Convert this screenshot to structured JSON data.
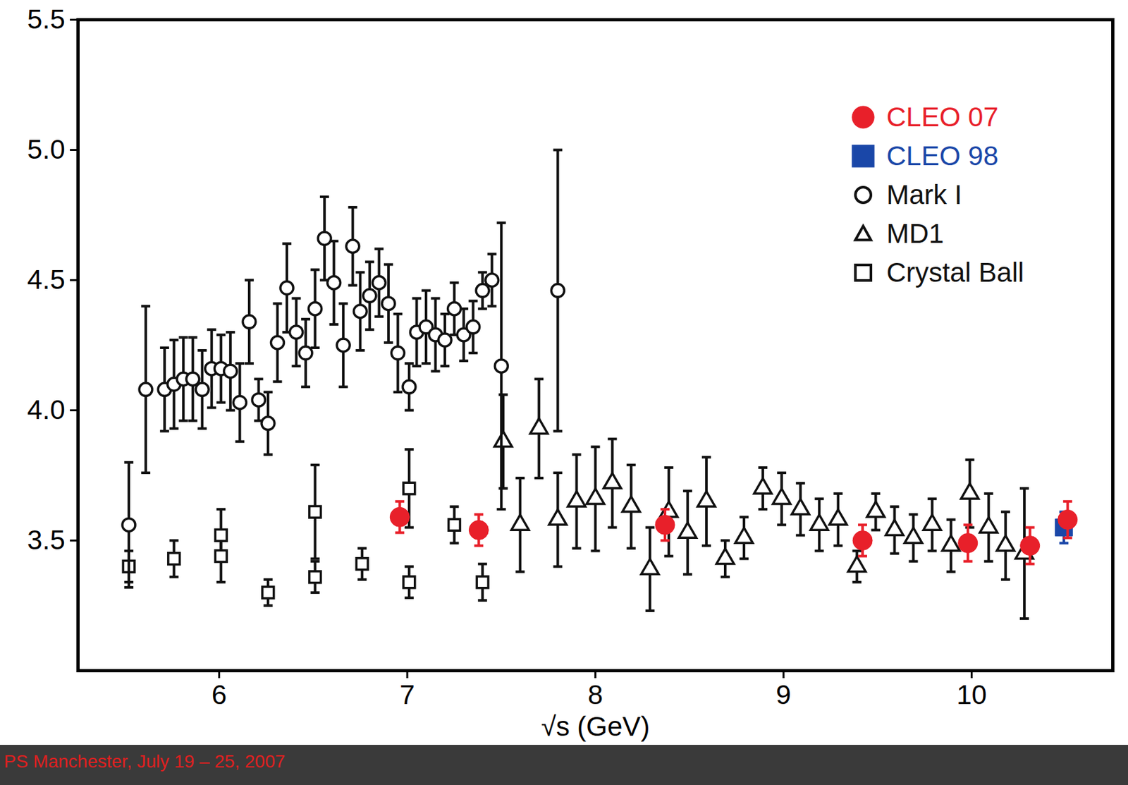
{
  "chart_data": {
    "type": "scatter",
    "xlabel": "√s (GeV)",
    "caption": "PS Manchester, July 19 – 25, 2007",
    "caption_color": "#e02020",
    "xlim": [
      5.25,
      10.75
    ],
    "xticks": [
      6,
      7,
      8,
      9,
      10
    ],
    "ylim": [
      3.0,
      5.5
    ],
    "yticks": [
      3.5,
      {
        "value": 4,
        "label": "4.0"
      },
      4.5,
      {
        "value": 5,
        "label": "5.0"
      },
      5.5
    ],
    "legend": "top-right",
    "series": [
      {
        "name": "CLEO 07",
        "color": "#e8202a",
        "marker": "circle",
        "x": [
          6.96,
          7.38,
          8.37,
          9.42,
          9.98,
          10.31,
          10.51
        ],
        "values": [
          3.59,
          3.54,
          3.56,
          3.5,
          3.49,
          3.48,
          3.58
        ],
        "errors": [
          0.06,
          0.06,
          0.06,
          0.06,
          0.07,
          0.07,
          0.07
        ]
      },
      {
        "name": "CLEO 98",
        "color": "#1a47a8",
        "marker": "square",
        "x": [
          10.49
        ],
        "values": [
          3.55
        ],
        "errors": [
          0.06
        ]
      },
      {
        "name": "Mark I",
        "color": "#111111",
        "marker": "open_circle",
        "x": [
          5.52,
          5.61,
          5.71,
          5.76,
          5.81,
          5.86,
          5.91,
          5.96,
          6.01,
          6.06,
          6.11,
          6.16,
          6.21,
          6.26,
          6.31,
          6.36,
          6.41,
          6.46,
          6.51,
          6.56,
          6.61,
          6.66,
          6.71,
          6.75,
          6.8,
          6.85,
          6.9,
          6.95,
          7.01,
          7.05,
          7.1,
          7.15,
          7.2,
          7.25,
          7.3,
          7.35,
          7.4,
          7.45,
          7.5,
          7.8
        ],
        "values": [
          3.56,
          4.08,
          4.08,
          4.1,
          4.12,
          4.12,
          4.08,
          4.16,
          4.16,
          4.15,
          4.03,
          4.34,
          4.04,
          3.95,
          4.26,
          4.47,
          4.3,
          4.22,
          4.39,
          4.66,
          4.49,
          4.25,
          4.63,
          4.38,
          4.44,
          4.49,
          4.41,
          4.22,
          4.09,
          4.3,
          4.32,
          4.29,
          4.27,
          4.39,
          4.29,
          4.32,
          4.46,
          4.5,
          4.17,
          4.46
        ],
        "errors": [
          0.24,
          0.32,
          0.16,
          0.17,
          0.16,
          0.16,
          0.15,
          0.15,
          0.13,
          0.15,
          0.15,
          0.16,
          0.08,
          0.12,
          0.15,
          0.17,
          0.13,
          0.13,
          0.15,
          0.16,
          0.16,
          0.16,
          0.15,
          0.15,
          0.13,
          0.13,
          0.15,
          0.15,
          0.09,
          0.13,
          0.14,
          0.14,
          0.1,
          0.1,
          0.1,
          0.1,
          0.07,
          0.1,
          0.55,
          0.54
        ]
      },
      {
        "name": "MD1",
        "color": "#111111",
        "marker": "open_triangle",
        "x": [
          7.51,
          7.6,
          7.7,
          7.8,
          7.9,
          8.0,
          8.09,
          8.19,
          8.29,
          8.39,
          8.49,
          8.59,
          8.69,
          8.79,
          8.89,
          8.99,
          9.09,
          9.19,
          9.29,
          9.39,
          9.49,
          9.59,
          9.69,
          9.79,
          9.89,
          9.99,
          10.09,
          10.18,
          10.28
        ],
        "values": [
          3.88,
          3.56,
          3.93,
          3.58,
          3.65,
          3.66,
          3.72,
          3.63,
          3.39,
          3.61,
          3.53,
          3.65,
          3.43,
          3.51,
          3.7,
          3.66,
          3.62,
          3.56,
          3.58,
          3.4,
          3.61,
          3.54,
          3.51,
          3.56,
          3.48,
          3.68,
          3.55,
          3.48,
          3.45
        ],
        "errors": [
          0.18,
          0.18,
          0.19,
          0.18,
          0.18,
          0.2,
          0.17,
          0.16,
          0.16,
          0.17,
          0.16,
          0.17,
          0.07,
          0.08,
          0.08,
          0.1,
          0.1,
          0.1,
          0.1,
          0.06,
          0.07,
          0.09,
          0.09,
          0.1,
          0.1,
          0.13,
          0.13,
          0.13,
          0.25
        ]
      },
      {
        "name": "Crystal Ball",
        "color": "#111111",
        "marker": "open_square",
        "x": [
          5.52,
          5.76,
          6.01,
          6.01,
          6.26,
          6.51,
          6.51,
          6.76,
          7.01,
          7.01,
          7.25,
          7.4
        ],
        "values": [
          3.4,
          3.43,
          3.52,
          3.44,
          3.3,
          3.61,
          3.36,
          3.41,
          3.7,
          3.34,
          3.56,
          3.34
        ],
        "errors": [
          0.06,
          0.07,
          0.1,
          0.1,
          0.05,
          0.18,
          0.06,
          0.06,
          0.15,
          0.06,
          0.07,
          0.07
        ]
      }
    ]
  }
}
